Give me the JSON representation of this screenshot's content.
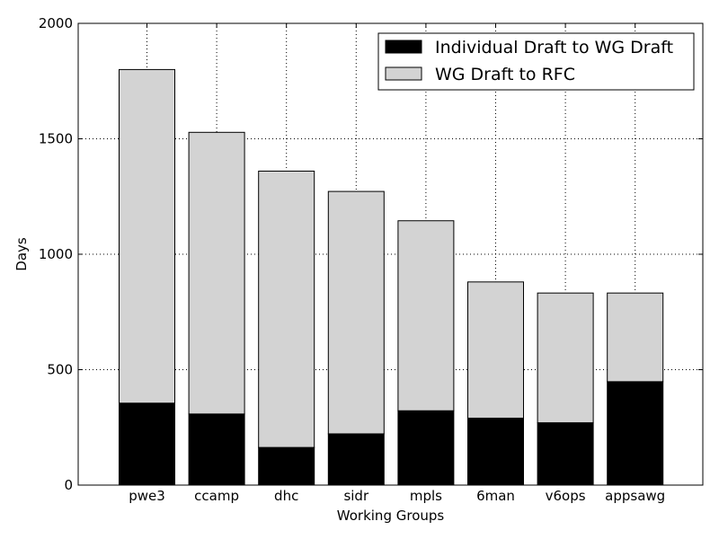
{
  "chart_data": {
    "type": "bar",
    "stacked": true,
    "title": "",
    "xlabel": "Working Groups",
    "ylabel": "Days",
    "categories": [
      "pwe3",
      "ccamp",
      "dhc",
      "sidr",
      "mpls",
      "6man",
      "v6ops",
      "appsawg"
    ],
    "series": [
      {
        "name": "Individual Draft to WG Draft",
        "color": "#000000",
        "values": [
          355,
          308,
          163,
          222,
          322,
          290,
          270,
          448
        ]
      },
      {
        "name": "WG Draft to RFC",
        "color": "#d3d3d3",
        "values": [
          1445,
          1220,
          1197,
          1050,
          823,
          590,
          562,
          384
        ]
      }
    ],
    "ylim": [
      0,
      2000
    ],
    "yticks": [
      0,
      500,
      1000,
      1500,
      2000
    ],
    "grid": true,
    "legend_position": "top-right"
  }
}
